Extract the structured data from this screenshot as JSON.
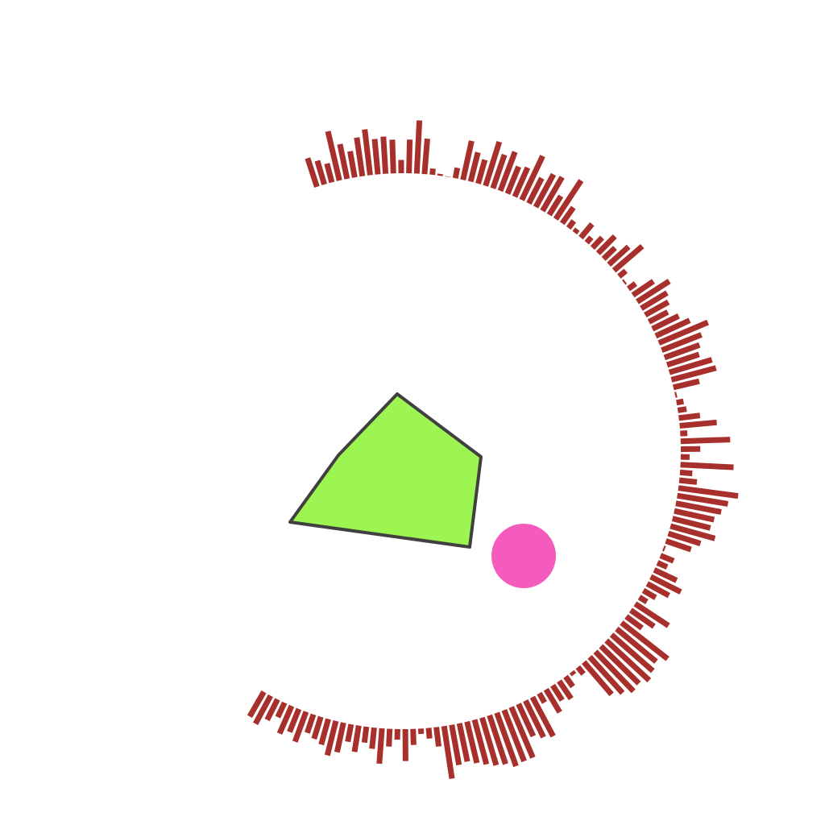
{
  "colors": {
    "background": "#ffffff",
    "bars": "#a8302c",
    "polygon_fill": "#9cf550",
    "polygon_stroke": "#404040",
    "circle_fill": "#f45bbd"
  },
  "shapes": {
    "polygon": "green-pentagon",
    "circle": "pink-dot",
    "radial_bars": "red-radial-bar-ring"
  },
  "radial_bars": {
    "series": "radial",
    "values": [
      0.34,
      0.28,
      0.22,
      0.57,
      0.4,
      0.3,
      0.44,
      0.52,
      0.4,
      0.42,
      0.38,
      0.15,
      0.38,
      0.6,
      0.4,
      0.07,
      0.02,
      0.0,
      0.12,
      0.45,
      0.34,
      0.28,
      0.52,
      0.4,
      0.47,
      0.33,
      0.36,
      0.55,
      0.32,
      0.42,
      0.44,
      0.25,
      0.52,
      0.22,
      0.1,
      0.05,
      0.2,
      0.08,
      0.16,
      0.27,
      0.18,
      0.3,
      0.42,
      0.1,
      0.02,
      0.1,
      0.28,
      0.43,
      0.34,
      0.3,
      0.24,
      0.33,
      0.42,
      0.6,
      0.48,
      0.42,
      0.38,
      0.5,
      0.52,
      0.3,
      0.02,
      0.08,
      0.1,
      0.24,
      0.42,
      0.08,
      0.56,
      0.22,
      0.1,
      0.6,
      0.14,
      0.2,
      0.68,
      0.58,
      0.52,
      0.46,
      0.44,
      0.52,
      0.38,
      0.3,
      0.02,
      0.16,
      0.12,
      0.28,
      0.38,
      0.28,
      0.16,
      0.1,
      0.45,
      0.32,
      0.22,
      0.66,
      0.58,
      0.62,
      0.66,
      0.6,
      0.62,
      0.55,
      0.48,
      0.1,
      0.04,
      0.14,
      0.24,
      0.2,
      0.3,
      0.12,
      0.5,
      0.46,
      0.4,
      0.62,
      0.62,
      0.64,
      0.58,
      0.56,
      0.52,
      0.48,
      0.44,
      0.46,
      0.6,
      0.22,
      0.12,
      0.06,
      0.18,
      0.36,
      0.12,
      0.2,
      0.4,
      0.24,
      0.18,
      0.3,
      0.2,
      0.34,
      0.4,
      0.3,
      0.26,
      0.22,
      0.36,
      0.28,
      0.34,
      0.18,
      0.26,
      0.36,
      0.32
    ]
  }
}
